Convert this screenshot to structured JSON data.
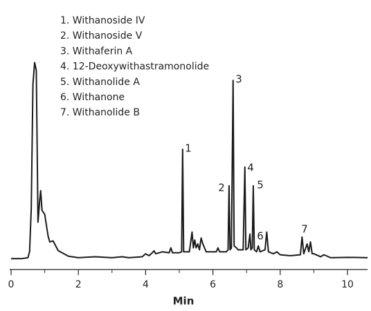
{
  "chart_data": {
    "type": "line",
    "legend_items": [
      "1. Withanoside IV",
      "2. Withanoside V",
      "3. Withaferin A",
      "4. 12-Deoxywithastramonolide",
      "5. Withanolide A",
      "6. Withanone",
      "7. Withanolide B"
    ],
    "peak_labels": [
      "1",
      "2",
      "3",
      "4",
      "5",
      "6",
      "7"
    ],
    "xlabel": "Min",
    "xlim": [
      0,
      10.6
    ],
    "xticks": [
      0,
      2,
      4,
      6,
      8,
      10
    ],
    "xticks_minor": [
      1,
      3,
      5,
      7,
      9
    ],
    "ylim": [
      -5,
      110
    ],
    "color": "#1a1a1a",
    "x": [
      0,
      0.3,
      0.5,
      0.55,
      0.6,
      0.65,
      0.7,
      0.75,
      0.8,
      0.85,
      0.88,
      0.92,
      1.0,
      1.1,
      1.15,
      1.25,
      1.4,
      1.7,
      2.0,
      2.5,
      3.0,
      3.3,
      3.5,
      3.9,
      4.0,
      4.1,
      4.2,
      4.25,
      4.3,
      4.5,
      4.7,
      4.75,
      4.8,
      5.0,
      5.07,
      5.1,
      5.13,
      5.3,
      5.38,
      5.42,
      5.46,
      5.5,
      5.55,
      5.6,
      5.65,
      5.7,
      5.75,
      5.8,
      6.1,
      6.15,
      6.2,
      6.4,
      6.45,
      6.48,
      6.51,
      6.55,
      6.6,
      6.63,
      6.7,
      6.75,
      6.9,
      6.95,
      6.98,
      7.05,
      7.1,
      7.13,
      7.17,
      7.2,
      7.23,
      7.3,
      7.35,
      7.4,
      7.55,
      7.6,
      7.65,
      7.8,
      7.9,
      8.0,
      8.3,
      8.6,
      8.65,
      8.7,
      8.8,
      8.85,
      8.9,
      8.95,
      9.0,
      9.2,
      9.3,
      9.5,
      10.0,
      10.6
    ],
    "values": [
      0.5,
      0.5,
      1,
      4,
      26,
      89,
      100,
      96,
      19,
      30,
      35,
      25,
      23,
      12,
      9,
      9.5,
      4.6,
      1.8,
      1,
      1.5,
      1,
      1.5,
      1,
      1.5,
      3,
      2,
      3.5,
      4.5,
      3,
      4,
      3.5,
      6,
      3.5,
      3.5,
      4,
      56,
      4,
      4,
      14,
      6,
      10,
      6,
      8,
      5,
      11,
      8,
      6,
      4,
      4,
      6,
      4,
      4,
      5,
      37.5,
      5,
      6,
      91,
      7,
      6,
      5,
      5,
      47,
      5,
      6,
      13,
      5,
      6,
      37.5,
      5,
      4,
      7,
      4,
      5,
      14,
      4,
      3,
      4,
      2.5,
      2,
      2.5,
      11.5,
      3,
      8,
      4,
      9,
      3,
      3,
      1.5,
      2.5,
      1,
      1.2,
      1
    ]
  }
}
